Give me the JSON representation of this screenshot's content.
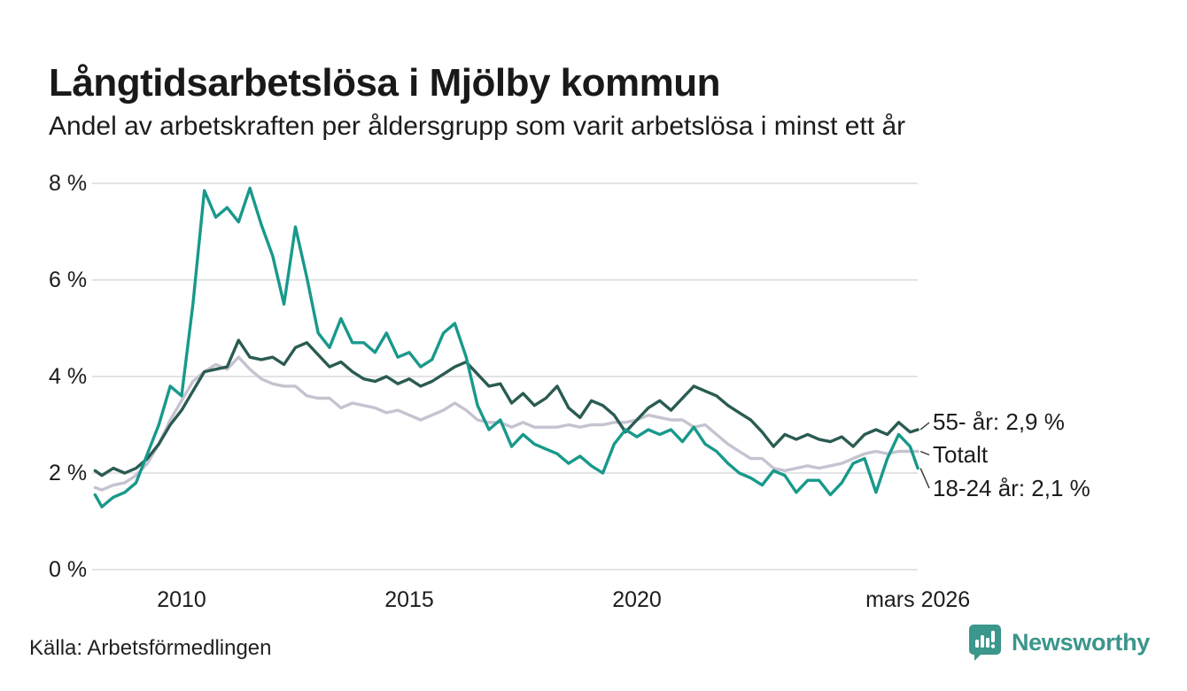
{
  "chart_data": {
    "type": "line",
    "title": "Långtidsarbetslösa i Mjölby kommun",
    "subtitle": "Andel av arbetskraften per åldersgrupp som varit arbetslösa i minst ett år",
    "source": "Källa: Arbetsförmedlingen",
    "unit": "%",
    "grid": true,
    "legend_position": "end-of-line labels at right",
    "y_axis": {
      "range": [
        0,
        8
      ],
      "values": [
        0,
        2,
        4,
        6,
        8
      ],
      "tick_labels": [
        "0 %",
        "2 %",
        "4 %",
        "6 %",
        "8 %"
      ]
    },
    "x_axis": {
      "range": [
        2008.1,
        2026.17
      ],
      "ticks": [
        {
          "label": "2010",
          "year": 2010
        },
        {
          "label": "2015",
          "year": 2015
        },
        {
          "label": "2020",
          "year": 2020
        },
        {
          "label": "mars 2026",
          "year": 2026.17
        }
      ]
    },
    "x": [
      2008.1,
      2008.25,
      2008.5,
      2008.75,
      2009,
      2009.25,
      2009.5,
      2009.75,
      2010,
      2010.25,
      2010.5,
      2010.75,
      2011,
      2011.25,
      2011.5,
      2011.75,
      2012,
      2012.25,
      2012.5,
      2012.75,
      2013,
      2013.25,
      2013.5,
      2013.75,
      2014,
      2014.25,
      2014.5,
      2014.75,
      2015,
      2015.25,
      2015.5,
      2015.75,
      2016,
      2016.25,
      2016.5,
      2016.75,
      2017,
      2017.25,
      2017.5,
      2017.75,
      2018,
      2018.25,
      2018.5,
      2018.75,
      2019,
      2019.25,
      2019.5,
      2019.75,
      2020,
      2020.25,
      2020.5,
      2020.75,
      2021,
      2021.25,
      2021.5,
      2021.75,
      2022,
      2022.25,
      2022.5,
      2022.75,
      2023,
      2023.25,
      2023.5,
      2023.75,
      2024,
      2024.25,
      2024.5,
      2024.75,
      2025,
      2025.25,
      2025.5,
      2025.75,
      2026,
      2026.17
    ],
    "series": [
      {
        "name": "55- år",
        "color": "#2a5b52",
        "end_label": "55- år: 2,9 %",
        "values": [
          2.05,
          1.95,
          2.1,
          2.0,
          2.1,
          2.3,
          2.6,
          3.0,
          3.3,
          3.7,
          4.1,
          4.15,
          4.2,
          4.75,
          4.4,
          4.35,
          4.4,
          4.25,
          4.6,
          4.7,
          4.45,
          4.2,
          4.3,
          4.1,
          3.95,
          3.9,
          4.0,
          3.85,
          3.95,
          3.8,
          3.9,
          4.05,
          4.2,
          4.3,
          4.05,
          3.8,
          3.85,
          3.45,
          3.65,
          3.4,
          3.55,
          3.8,
          3.35,
          3.15,
          3.5,
          3.4,
          3.2,
          2.85,
          3.1,
          3.35,
          3.5,
          3.3,
          3.55,
          3.8,
          3.7,
          3.6,
          3.4,
          3.25,
          3.1,
          2.85,
          2.55,
          2.8,
          2.7,
          2.8,
          2.7,
          2.65,
          2.75,
          2.55,
          2.8,
          2.9,
          2.8,
          3.05,
          2.85,
          2.9
        ]
      },
      {
        "name": "Totalt",
        "color": "#c6c3d0",
        "end_label": "Totalt",
        "values": [
          1.7,
          1.65,
          1.75,
          1.8,
          1.95,
          2.2,
          2.6,
          3.1,
          3.5,
          3.9,
          4.1,
          4.25,
          4.15,
          4.4,
          4.15,
          3.95,
          3.85,
          3.8,
          3.8,
          3.6,
          3.55,
          3.55,
          3.35,
          3.45,
          3.4,
          3.35,
          3.25,
          3.3,
          3.2,
          3.1,
          3.2,
          3.3,
          3.45,
          3.3,
          3.1,
          3.05,
          3.05,
          2.95,
          3.05,
          2.95,
          2.95,
          2.95,
          3.0,
          2.95,
          3.0,
          3.0,
          3.05,
          3.05,
          3.1,
          3.2,
          3.15,
          3.1,
          3.1,
          2.95,
          3.0,
          2.8,
          2.6,
          2.45,
          2.3,
          2.3,
          2.1,
          2.05,
          2.1,
          2.15,
          2.1,
          2.15,
          2.2,
          2.3,
          2.4,
          2.45,
          2.4,
          2.45,
          2.45,
          2.45
        ]
      },
      {
        "name": "18-24 år",
        "color": "#18998b",
        "end_label": "18-24 år: 2,1 %",
        "values": [
          1.55,
          1.3,
          1.5,
          1.6,
          1.8,
          2.4,
          3.0,
          3.8,
          3.6,
          5.5,
          7.85,
          7.3,
          7.5,
          7.2,
          7.9,
          7.15,
          6.5,
          5.5,
          7.1,
          6.05,
          4.9,
          4.6,
          5.2,
          4.7,
          4.7,
          4.5,
          4.9,
          4.4,
          4.5,
          4.2,
          4.35,
          4.9,
          5.1,
          4.4,
          3.4,
          2.9,
          3.1,
          2.55,
          2.8,
          2.6,
          2.5,
          2.4,
          2.2,
          2.35,
          2.15,
          2.0,
          2.6,
          2.9,
          2.75,
          2.9,
          2.8,
          2.9,
          2.65,
          2.95,
          2.6,
          2.45,
          2.2,
          2.0,
          1.9,
          1.75,
          2.05,
          1.95,
          1.6,
          1.85,
          1.85,
          1.55,
          1.8,
          2.2,
          2.3,
          1.6,
          2.3,
          2.8,
          2.55,
          2.1
        ]
      }
    ]
  },
  "footer": {
    "brand": "Newsworthy"
  },
  "colors": {
    "grid": "#e3e3e6",
    "connector": "#333333",
    "brand_teal": "#3b968b",
    "series_55": "#2a5b52",
    "series_total": "#c6c3d0",
    "series_18_24": "#18998b"
  }
}
